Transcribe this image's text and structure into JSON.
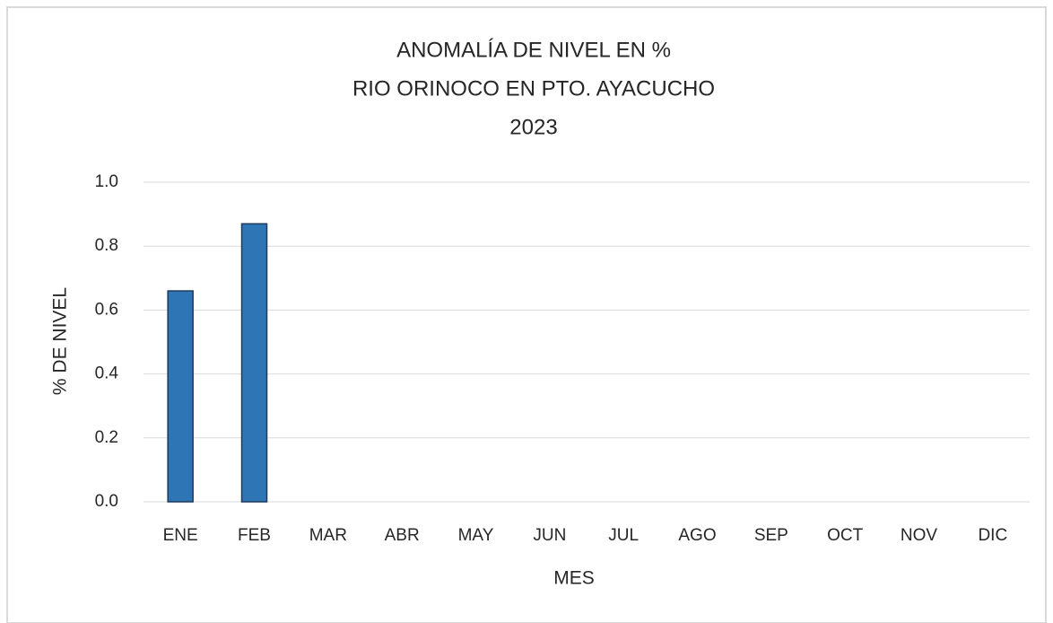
{
  "chart_data": {
    "type": "bar",
    "title": [
      "ANOMALÍA DE NIVEL EN %",
      "RIO ORINOCO EN PTO. AYACUCHO",
      "2023"
    ],
    "x_label": "MES",
    "y_label": "% DE NIVEL",
    "categories": [
      "ENE",
      "FEB",
      "MAR",
      "ABR",
      "MAY",
      "JUN",
      "JUL",
      "AGO",
      "SEP",
      "OCT",
      "NOV",
      "DIC"
    ],
    "values": [
      0.66,
      0.87,
      null,
      null,
      null,
      null,
      null,
      null,
      null,
      null,
      null,
      null
    ],
    "color": "#2e75b6",
    "ylim": [
      0,
      1
    ],
    "yticks": [
      {
        "value": 0,
        "label": "0.0"
      },
      0.2,
      0.4,
      0.6,
      0.8,
      {
        "value": 1,
        "label": "1.0"
      }
    ],
    "grid": true
  }
}
